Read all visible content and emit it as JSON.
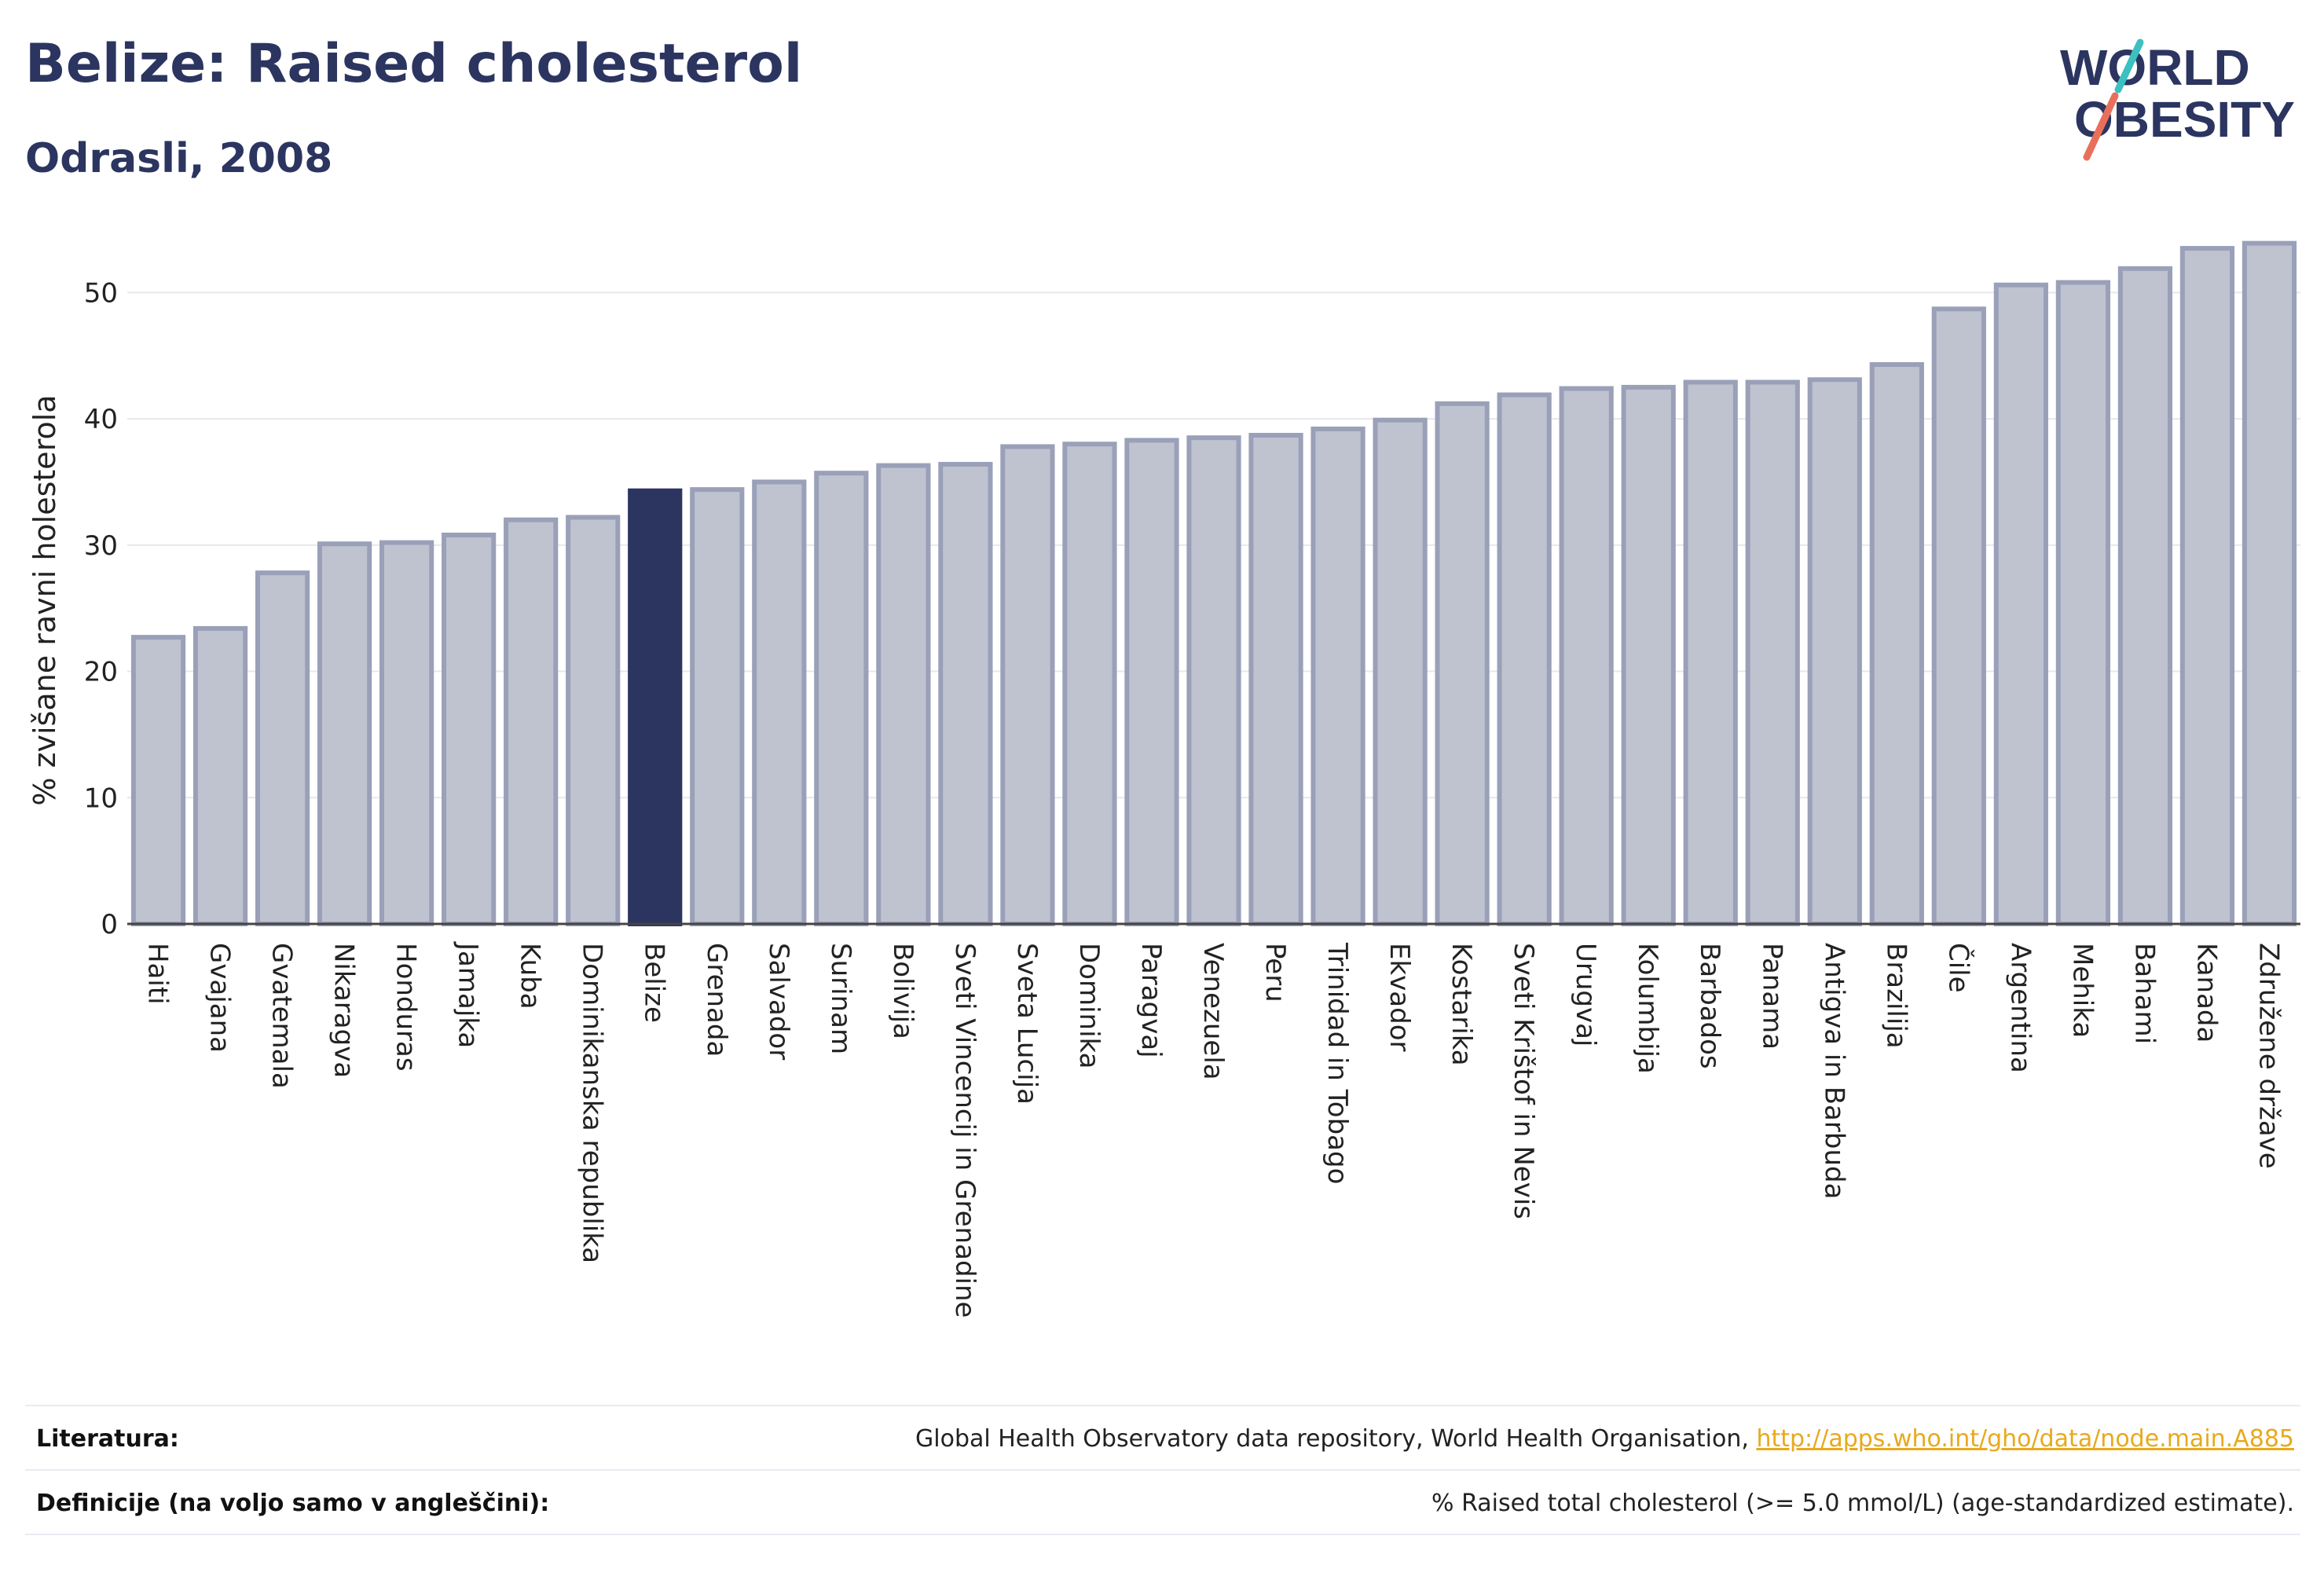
{
  "title": "Belize: Raised cholesterol",
  "subtitle": "Odrasli, 2008",
  "logo": {
    "line1": "WORLD",
    "line2": "OBESITY"
  },
  "colors": {
    "navy": "#2b3560",
    "bar_fill": "#bfc3d0",
    "bar_stroke": "#9aa0b8",
    "highlight": "#2b3560",
    "teal": "#3cc1c0",
    "coral": "#e8705a",
    "link": "#e8a91c",
    "grid": "#e6e8ee"
  },
  "chart_data": {
    "type": "bar",
    "ylabel": "% zvišane ravni holesterola",
    "xlabel": "",
    "ylim": [
      0,
      55
    ],
    "yticks": [
      0,
      10,
      20,
      30,
      40,
      50
    ],
    "grid": true,
    "highlight": "Belize",
    "categories": [
      "Haiti",
      "Gvajana",
      "Gvatemala",
      "Nikaragva",
      "Honduras",
      "Jamajka",
      "Kuba",
      "Dominikanska republika",
      "Belize",
      "Grenada",
      "Salvador",
      "Surinam",
      "Bolivija",
      "Sveti Vincencij in Grenadine",
      "Sveta Lucija",
      "Dominika",
      "Paragvaj",
      "Venezuela",
      "Peru",
      "Trinidad in Tobago",
      "Ekvador",
      "Kostarika",
      "Sveti Krištof in Nevis",
      "Urugvaj",
      "Kolumbija",
      "Barbados",
      "Panama",
      "Antigva in Barbuda",
      "Brazilija",
      "Čile",
      "Argentina",
      "Mehika",
      "Bahami",
      "Kanada",
      "Združene države"
    ],
    "values": [
      22.7,
      23.4,
      27.8,
      30.1,
      30.2,
      30.8,
      32.0,
      32.2,
      34.3,
      34.4,
      35.0,
      35.7,
      36.3,
      36.4,
      37.8,
      38.0,
      38.3,
      38.5,
      38.7,
      39.2,
      39.9,
      41.2,
      41.9,
      42.4,
      42.5,
      42.9,
      42.9,
      43.1,
      44.3,
      48.7,
      50.6,
      50.8,
      51.9,
      53.5,
      53.9
    ]
  },
  "footer": {
    "references_label": "Literatura:",
    "references_text": "Global Health Observatory data repository, World Health Organisation, ",
    "references_link": "http://apps.who.int/gho/data/node.main.A885",
    "definitions_label": "Definicije (na voljo samo v angleščini):",
    "definitions_text": "% Raised total cholesterol (>= 5.0 mmol/L) (age-standardized estimate)."
  }
}
